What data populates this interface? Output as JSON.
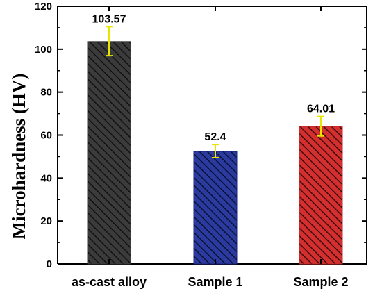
{
  "chart_data": {
    "type": "bar",
    "categories": [
      "as-cast alloy",
      "Sample 1",
      "Sample 2"
    ],
    "values": [
      103.57,
      52.4,
      64.01
    ],
    "value_labels": [
      "103.57",
      "52.4",
      "64.01"
    ],
    "error_upper": [
      110.5,
      55.6,
      68.7
    ],
    "error_lower": [
      97.0,
      49.5,
      59.6
    ],
    "ylabel": "Microhardness (HV)",
    "xlabel": "",
    "title": "",
    "ylim": [
      0,
      120
    ],
    "yticks": [
      "0",
      "20",
      "40",
      "60",
      "80",
      "100",
      "120"
    ],
    "grid": false,
    "bar_colors": [
      "#3b3b3b",
      "#1a237e",
      "#c62828"
    ],
    "error_bar_color": "#e6e600",
    "fill_pattern": "diagonal-hatch"
  }
}
